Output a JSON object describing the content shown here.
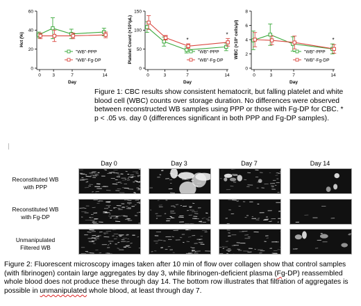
{
  "figure1": {
    "caption": "Figure 1: CBC results show consistent hematocrit, but falling platelet and white blood cell (WBC) counts over storage duration. No differences were observed between reconstructed WB samples using PPP or those with Fg-DP for CBC. * p < .05 vs. day 0 (differences significant in both PPP and Fg-DP samples)."
  },
  "chart_data": [
    {
      "type": "line",
      "ylabel": "Hct (%)",
      "xlabel": "Day",
      "x": [
        0,
        3,
        7,
        14
      ],
      "ylim": [
        0,
        60
      ],
      "yticks": [
        "0",
        "20",
        "40",
        "60"
      ],
      "xticks": [
        "0",
        "3",
        "7",
        "14"
      ],
      "series": [
        {
          "name": "\"WB\"-PPP",
          "values": [
            35,
            42,
            36,
            38
          ],
          "err": [
            3,
            11,
            5,
            4
          ],
          "color": "#3aa83a",
          "marker": "square"
        },
        {
          "name": "\"WB\"-Fg-DP",
          "values": [
            34,
            34,
            34,
            35
          ],
          "err": [
            3,
            6,
            3,
            3
          ],
          "color": "#d9473f",
          "marker": "square"
        }
      ],
      "legend": "bottom-right",
      "significance": []
    },
    {
      "type": "line",
      "ylabel": "Platelet Count (×10³/µL)",
      "xlabel": "Day",
      "x": [
        0,
        3,
        7,
        14
      ],
      "ylim": [
        0,
        150
      ],
      "yticks": [
        "0",
        "50",
        "100",
        "150"
      ],
      "xticks": [
        "0",
        "3",
        "7",
        "14"
      ],
      "series": [
        {
          "name": "\"WB\"-PPP",
          "values": [
            108,
            70,
            48,
            56
          ],
          "err": [
            14,
            12,
            8,
            10
          ],
          "color": "#3aa83a",
          "marker": "square"
        },
        {
          "name": "\"WB\"-Fg-DP",
          "values": [
            120,
            80,
            58,
            68
          ],
          "err": [
            18,
            6,
            6,
            10
          ],
          "color": "#d9473f",
          "marker": "square"
        }
      ],
      "legend": "bottom-right",
      "significance": [
        {
          "x": 7,
          "label": "*"
        },
        {
          "x": 14,
          "label": "*"
        }
      ]
    },
    {
      "type": "line",
      "ylabel": "WBC (×10³ cells/µl)",
      "xlabel": "Day",
      "x": [
        0,
        3,
        7,
        14
      ],
      "ylim": [
        0,
        8
      ],
      "yticks": [
        "0",
        "2",
        "4",
        "6",
        "8"
      ],
      "xticks": [
        "0",
        "3",
        "7",
        "14"
      ],
      "series": [
        {
          "name": "\"WB\"-PPP",
          "values": [
            3.9,
            4.7,
            3.4,
            2.7
          ],
          "err": [
            1.3,
            1.5,
            1.0,
            0.7
          ],
          "color": "#3aa83a",
          "marker": "square"
        },
        {
          "name": "\"WB\"-Fg-DP",
          "values": [
            4.0,
            3.9,
            3.6,
            2.7
          ],
          "err": [
            1.0,
            0.6,
            0.9,
            0.6
          ],
          "color": "#d9473f",
          "marker": "square"
        }
      ],
      "legend": "bottom-right",
      "significance": [
        {
          "x": 14,
          "label": "*"
        }
      ]
    }
  ],
  "figure2": {
    "day_labels": [
      "Day 0",
      "Day 3",
      "Day 7",
      "Day 14"
    ],
    "row_labels": [
      "Reconstituted WB with PPP",
      "Reconstituted WB with Fg-DP",
      "Unmanipulated Filtered WB"
    ],
    "caption_parts": {
      "p1": "Figure 2: Fluorescent microscopy images taken after 10 min of flow over collagen show that control samples (with fibrinogen) contain large aggregates by day 3, while fibrinogen-deficient plasma (",
      "fg": "Fg",
      "p2": "-DP) reassembled whole blood does not produce these through day 14. The bottom row illustrates that filtration of aggregates is possible in ",
      "unman": "unmanipulated",
      "p3": " whole blood, at least through day 7."
    }
  }
}
